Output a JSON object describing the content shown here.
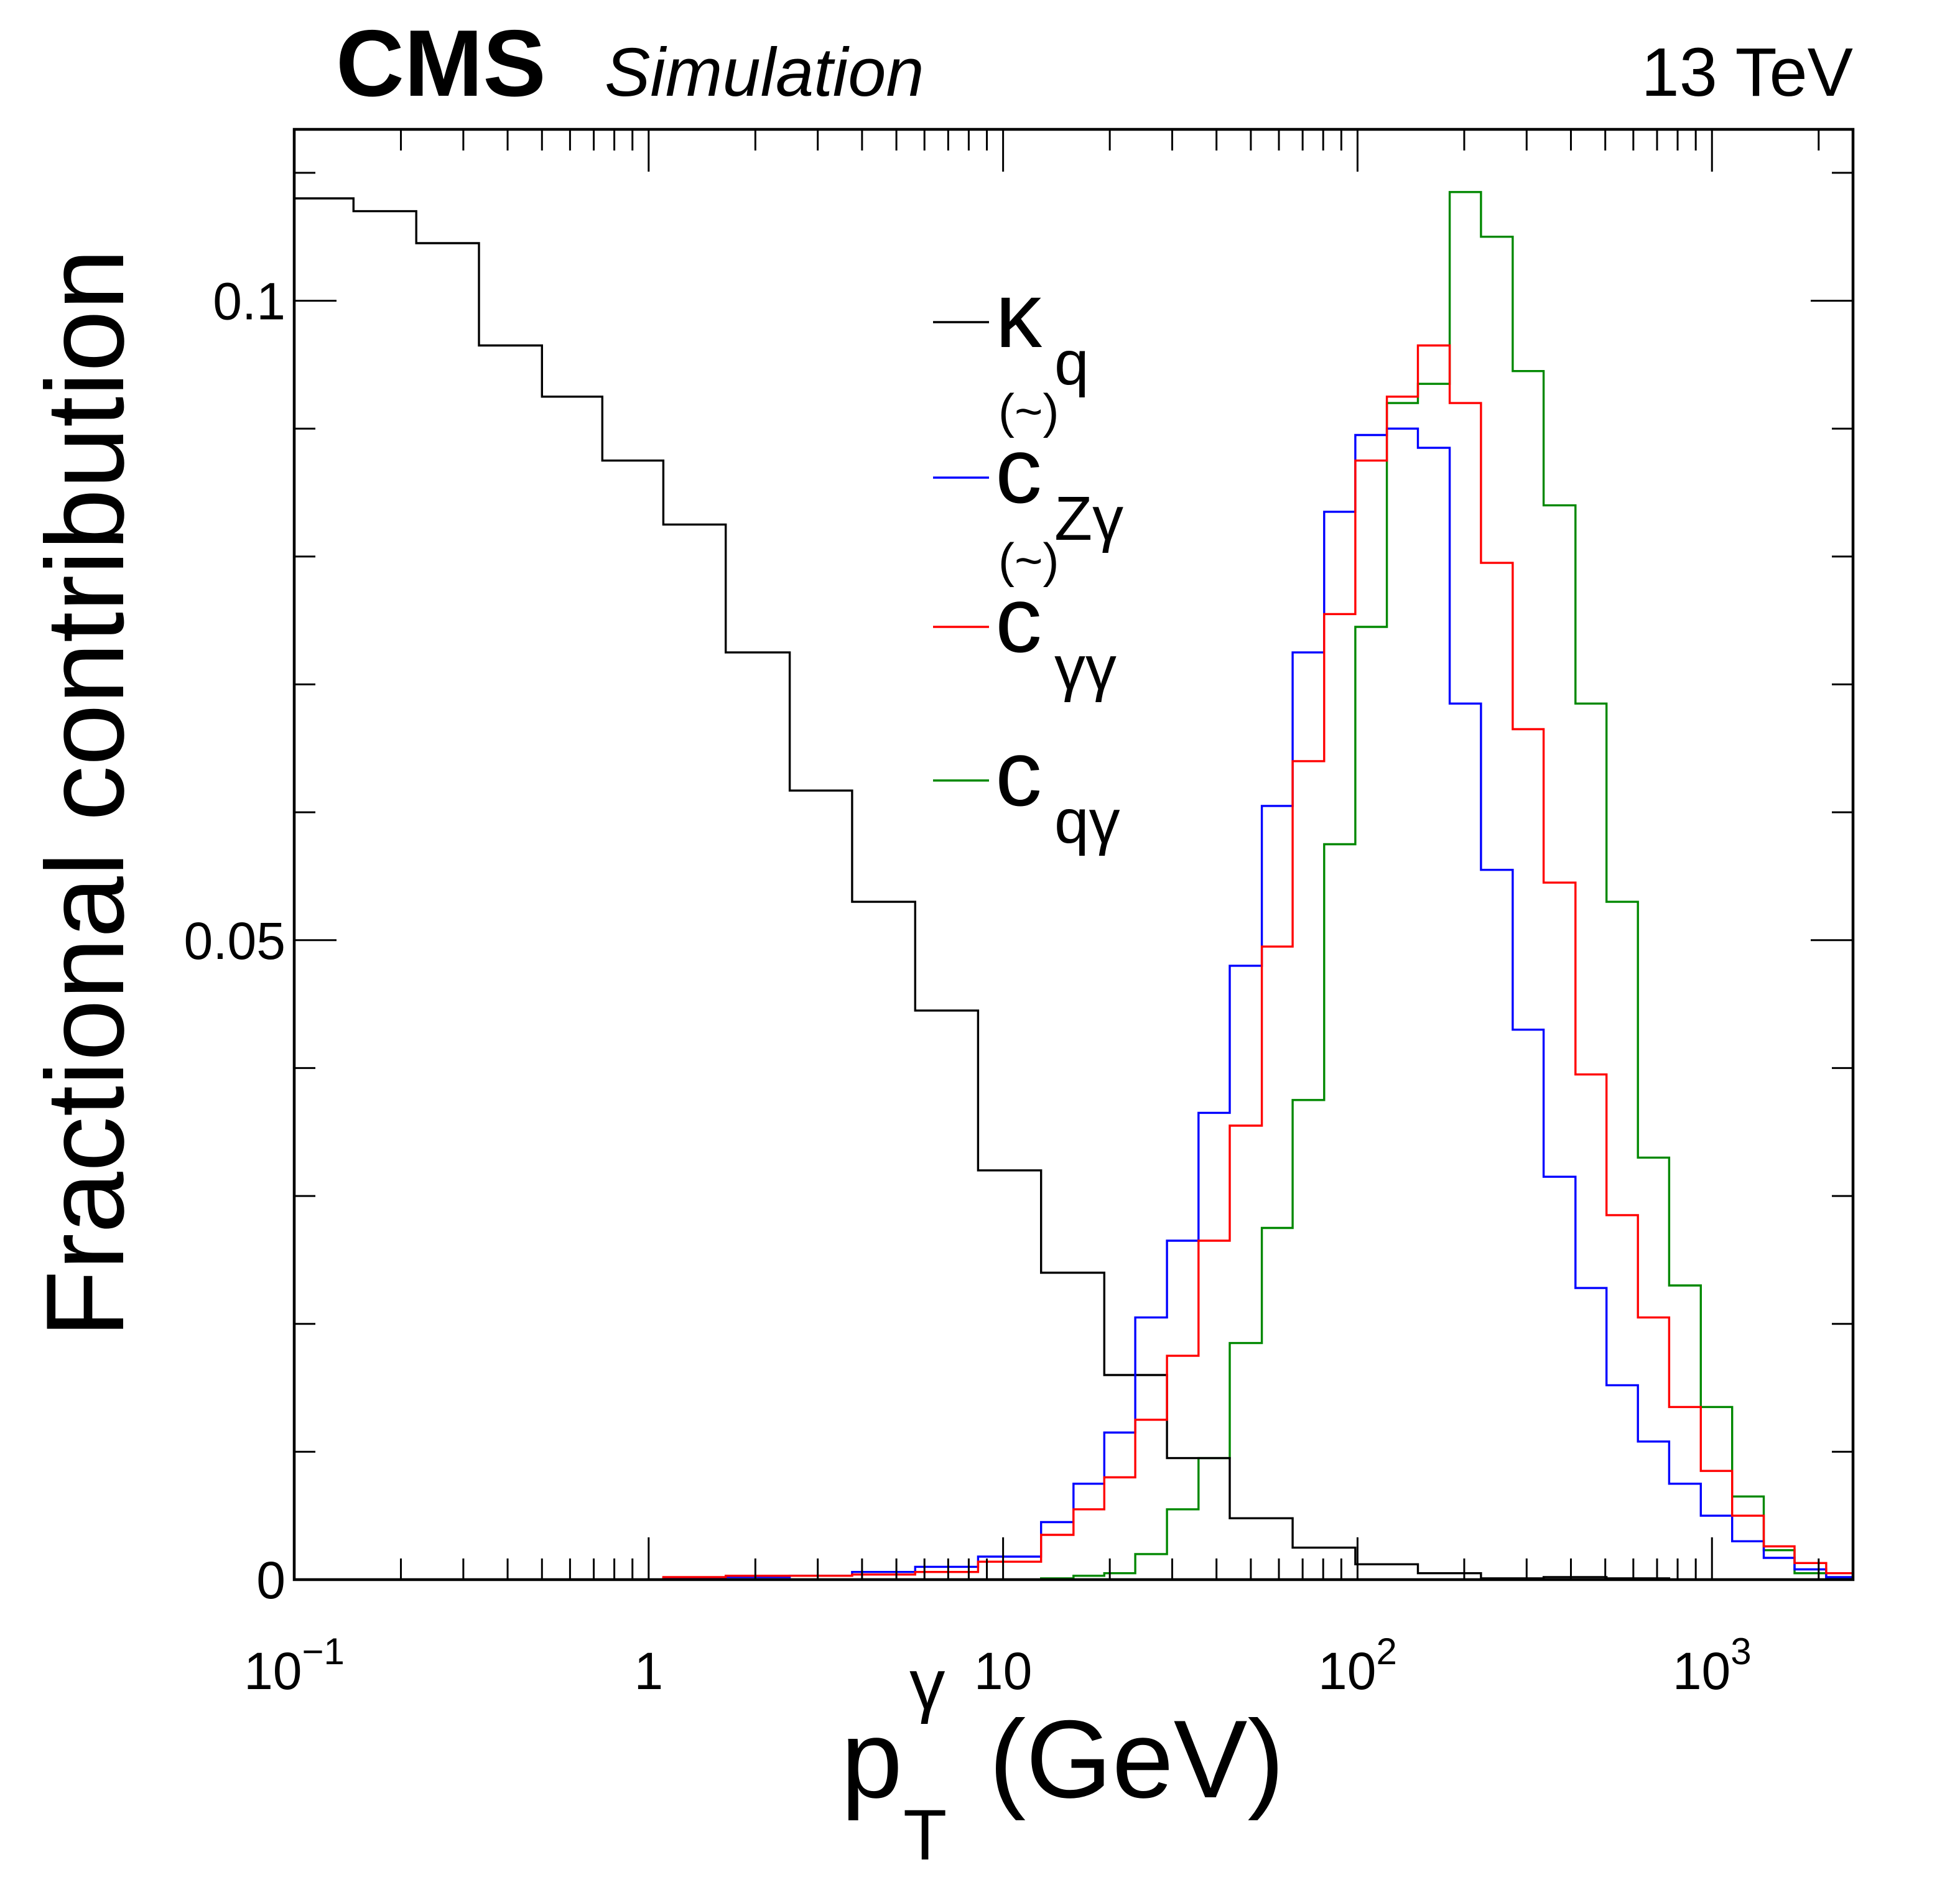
{
  "header": {
    "experiment": "CMS",
    "subtitle": "Simulation",
    "energy": "13 TeV"
  },
  "axes": {
    "xlabel_main": "p",
    "xlabel_sup": "γ",
    "xlabel_sub": "T",
    "xlabel_unit": "(GeV)",
    "ylabel": "Fractional contribution",
    "x_tick_labels": [
      {
        "base": "10",
        "exp": "−1",
        "value": 0.1
      },
      {
        "base": "1",
        "exp": "",
        "value": 1
      },
      {
        "base": "10",
        "exp": "",
        "value": 10
      },
      {
        "base": "10",
        "exp": "2",
        "value": 100
      },
      {
        "base": "10",
        "exp": "3",
        "value": 1000
      }
    ],
    "y_tick_labels": [
      {
        "label": "0",
        "value": 0
      },
      {
        "label": "0.05",
        "value": 0.05
      },
      {
        "label": "0.1",
        "value": 0.1
      }
    ]
  },
  "legend": [
    {
      "key": "kq",
      "symbol": "κ",
      "sub": "q",
      "accent": "",
      "color": "#000000"
    },
    {
      "key": "czg",
      "symbol": "c",
      "sub": "Zγ",
      "accent": "(~)",
      "color": "#0000ff"
    },
    {
      "key": "cgg",
      "symbol": "c",
      "sub": "γγ",
      "accent": "(~)",
      "color": "#ff0000"
    },
    {
      "key": "cqg",
      "symbol": "c",
      "sub": "qγ",
      "accent": "",
      "color": "#008800"
    }
  ],
  "chart_data": {
    "type": "histogram",
    "x_scale": "log",
    "xlim": [
      0.1,
      2500
    ],
    "ylim": [
      0,
      0.1134
    ],
    "bin_edges": [
      0.1,
      0.147,
      0.221,
      0.332,
      0.5,
      0.74,
      1.1,
      1.65,
      2.5,
      3.75,
      5.65,
      8.5,
      12.8,
      19.3,
      29,
      43.6,
      65.6,
      98.6,
      148,
      223,
      335,
      504,
      757,
      1140,
      1710,
      2500
    ],
    "edges_fine": [
      0.1,
      0.147,
      0.221,
      0.332,
      0.5,
      0.74,
      1.1,
      1.65,
      2.5,
      3.75,
      5.65,
      8.5,
      12.8,
      15.8,
      19.3,
      23.6,
      29,
      35.6,
      43.6,
      53.7,
      65.6,
      80.5,
      98.6,
      121,
      148,
      182,
      223,
      274,
      335,
      412,
      504,
      618,
      757,
      930,
      1140,
      1400,
      1710,
      2100,
      2500
    ],
    "series": [
      {
        "name": "κq",
        "color": "#000000",
        "binning": "coarse",
        "values": [
          0.108,
          0.107,
          0.1045,
          0.0965,
          0.0925,
          0.0875,
          0.0825,
          0.0725,
          0.0617,
          0.053,
          0.0445,
          0.032,
          0.024,
          0.016,
          0.0095,
          0.0048,
          0.0025,
          0.0012,
          0.0005,
          0.0001,
          0.0002,
          0.0001,
          0.0,
          0.0,
          0.0
        ]
      },
      {
        "name": "Zγ",
        "color": "#0000ff",
        "binning": "fine",
        "values": [
          0.0,
          0.0,
          0.0,
          0.0,
          0.0,
          0.0,
          0.0001,
          0.0002,
          0.0003,
          0.0006,
          0.001,
          0.0018,
          0.0045,
          0.0075,
          0.0115,
          0.0205,
          0.0265,
          0.0365,
          0.048,
          0.0605,
          0.0725,
          0.0835,
          0.0895,
          0.09,
          0.0885,
          0.0685,
          0.0555,
          0.043,
          0.0315,
          0.0228,
          0.0152,
          0.0108,
          0.0075,
          0.005,
          0.003,
          0.0017,
          0.0008,
          0.0002
        ]
      },
      {
        "name": "γγ",
        "color": "#ff0000",
        "binning": "fine",
        "values": [
          0.0,
          0.0,
          0.0,
          0.0,
          0.0,
          0.0,
          0.0002,
          0.0003,
          0.0003,
          0.0004,
          0.0006,
          0.0014,
          0.0035,
          0.0055,
          0.008,
          0.0125,
          0.0175,
          0.0265,
          0.0355,
          0.0495,
          0.064,
          0.0755,
          0.0875,
          0.0925,
          0.0965,
          0.092,
          0.0795,
          0.0665,
          0.0545,
          0.0395,
          0.0285,
          0.0205,
          0.0135,
          0.0085,
          0.005,
          0.0026,
          0.0013,
          0.0005
        ]
      },
      {
        "name": "qγ",
        "color": "#008800",
        "binning": "fine",
        "values": [
          0.0,
          0.0,
          0.0,
          0.0,
          0.0,
          0.0,
          0.0,
          0.0,
          0.0,
          0.0,
          0.0,
          0.0,
          0.0001,
          0.0003,
          0.0005,
          0.002,
          0.0055,
          0.0095,
          0.0185,
          0.0275,
          0.0375,
          0.0575,
          0.0745,
          0.092,
          0.0935,
          0.1085,
          0.105,
          0.0945,
          0.084,
          0.0685,
          0.053,
          0.033,
          0.023,
          0.0135,
          0.0065,
          0.0023,
          0.0005,
          0.0001
        ]
      }
    ]
  }
}
